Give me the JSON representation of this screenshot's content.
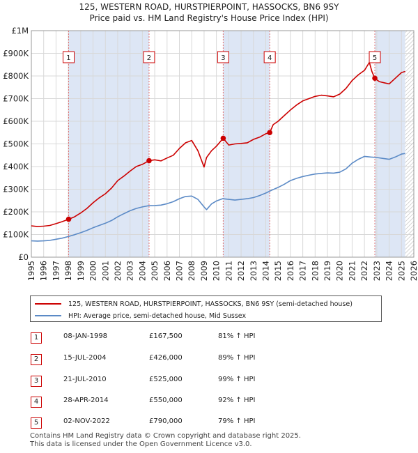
{
  "title": {
    "line1": "125, WESTERN ROAD, HURSTPIERPOINT, HASSOCKS, BN6 9SY",
    "line2": "Price paid vs. HM Land Registry's House Price Index (HPI)"
  },
  "colors": {
    "price_line": "#cc0000",
    "hpi_line": "#5b8ac6",
    "shade": "#dde6f5",
    "hatch": "#b9b9b9",
    "grid": "#d8d8d8",
    "vline": "#e07070"
  },
  "legend": {
    "price_label": "125, WESTERN ROAD, HURSTPIERPOINT, HASSOCKS, BN6 9SY (semi-detached house)",
    "hpi_label": "HPI: Average price, semi-detached house, Mid Sussex"
  },
  "transactions": [
    {
      "num": "1",
      "date": "08-JAN-1998",
      "price": "£167,500",
      "hpi": "81% ↑ HPI"
    },
    {
      "num": "2",
      "date": "15-JUL-2004",
      "price": "£426,000",
      "hpi": "89% ↑ HPI"
    },
    {
      "num": "3",
      "date": "21-JUL-2010",
      "price": "£525,000",
      "hpi": "99% ↑ HPI"
    },
    {
      "num": "4",
      "date": "28-APR-2014",
      "price": "£550,000",
      "hpi": "92% ↑ HPI"
    },
    {
      "num": "5",
      "date": "02-NOV-2022",
      "price": "£790,000",
      "hpi": "79% ↑ HPI"
    }
  ],
  "footer": {
    "line1": "Contains HM Land Registry data © Crown copyright and database right 2025.",
    "line2": "This data is licensed under the Open Government Licence v3.0."
  },
  "chart_data": {
    "type": "line",
    "title": "Price paid vs. HM Land Registry's House Price Index (HPI)",
    "xlabel": "",
    "ylabel": "",
    "xlim": [
      1995,
      2026
    ],
    "ylim": [
      0,
      1000000
    ],
    "x_ticks": [
      1995,
      1996,
      1997,
      1998,
      1999,
      2000,
      2001,
      2002,
      2003,
      2004,
      2005,
      2006,
      2007,
      2008,
      2009,
      2010,
      2011,
      2012,
      2013,
      2014,
      2015,
      2016,
      2017,
      2018,
      2019,
      2020,
      2021,
      2022,
      2023,
      2024,
      2025,
      2026
    ],
    "y_ticks": [
      {
        "value": 0,
        "label": "£0"
      },
      {
        "value": 100000,
        "label": "£100K"
      },
      {
        "value": 200000,
        "label": "£200K"
      },
      {
        "value": 300000,
        "label": "£300K"
      },
      {
        "value": 400000,
        "label": "£400K"
      },
      {
        "value": 500000,
        "label": "£500K"
      },
      {
        "value": 600000,
        "label": "£600K"
      },
      {
        "value": 700000,
        "label": "£700K"
      },
      {
        "value": 800000,
        "label": "£800K"
      },
      {
        "value": 900000,
        "label": "£900K"
      },
      {
        "value": 1000000,
        "label": "£1M"
      }
    ],
    "grid": true,
    "shaded_periods": [
      [
        1998.02,
        2004.54
      ],
      [
        2010.55,
        2014.32
      ],
      [
        2022.84,
        2025.3
      ]
    ],
    "future_hatch_from": 2025.3,
    "sales": [
      {
        "label": "1",
        "x": 1998.02,
        "y": 167500
      },
      {
        "label": "2",
        "x": 2004.54,
        "y": 426000
      },
      {
        "label": "3",
        "x": 2010.55,
        "y": 525000
      },
      {
        "label": "4",
        "x": 2014.32,
        "y": 550000
      },
      {
        "label": "5",
        "x": 2022.84,
        "y": 790000
      }
    ],
    "series": [
      {
        "name": "125, WESTERN ROAD, HURSTPIERPOINT, HASSOCKS, BN6 9SY (semi-detached house)",
        "x": [
          1995.0,
          1995.5,
          1996.0,
          1996.5,
          1997.0,
          1997.5,
          1998.02,
          1998.5,
          1999.0,
          1999.5,
          2000.0,
          2000.5,
          2001.0,
          2001.5,
          2002.0,
          2002.5,
          2003.0,
          2003.5,
          2004.0,
          2004.54,
          2005.0,
          2005.5,
          2006.0,
          2006.5,
          2007.0,
          2007.5,
          2008.0,
          2008.5,
          2009.0,
          2009.2,
          2009.6,
          2010.0,
          2010.55,
          2011.0,
          2011.5,
          2012.0,
          2012.5,
          2013.0,
          2013.5,
          2014.0,
          2014.32,
          2014.6,
          2015.0,
          2015.5,
          2016.0,
          2016.5,
          2017.0,
          2017.5,
          2018.0,
          2018.5,
          2019.0,
          2019.5,
          2020.0,
          2020.5,
          2021.0,
          2021.5,
          2022.0,
          2022.4,
          2022.6,
          2022.84,
          2023.2,
          2023.6,
          2024.0,
          2024.5,
          2025.0,
          2025.3
        ],
        "y": [
          138000,
          135000,
          137000,
          140000,
          148000,
          157000,
          167500,
          178000,
          195000,
          215000,
          240000,
          262000,
          280000,
          305000,
          338000,
          358000,
          380000,
          400000,
          410000,
          426000,
          430000,
          425000,
          438000,
          450000,
          480000,
          505000,
          515000,
          470000,
          398000,
          440000,
          470000,
          490000,
          525000,
          495000,
          500000,
          502000,
          505000,
          520000,
          530000,
          545000,
          550000,
          585000,
          600000,
          625000,
          650000,
          672000,
          690000,
          700000,
          710000,
          715000,
          712000,
          708000,
          720000,
          745000,
          780000,
          805000,
          825000,
          860000,
          820000,
          790000,
          775000,
          770000,
          765000,
          790000,
          815000,
          820000
        ]
      },
      {
        "name": "HPI: Average price, semi-detached house, Mid Sussex",
        "x": [
          1995.0,
          1995.5,
          1996.0,
          1996.5,
          1997.0,
          1997.5,
          1998.0,
          1998.5,
          1999.0,
          1999.5,
          2000.0,
          2000.5,
          2001.0,
          2001.5,
          2002.0,
          2002.5,
          2003.0,
          2003.5,
          2004.0,
          2004.5,
          2005.0,
          2005.5,
          2006.0,
          2006.5,
          2007.0,
          2007.5,
          2008.0,
          2008.5,
          2009.0,
          2009.2,
          2009.6,
          2010.0,
          2010.5,
          2011.0,
          2011.5,
          2012.0,
          2012.5,
          2013.0,
          2013.5,
          2014.0,
          2014.5,
          2015.0,
          2015.5,
          2016.0,
          2016.5,
          2017.0,
          2017.5,
          2018.0,
          2018.5,
          2019.0,
          2019.5,
          2020.0,
          2020.5,
          2021.0,
          2021.5,
          2022.0,
          2022.5,
          2023.0,
          2023.5,
          2024.0,
          2024.5,
          2025.0,
          2025.3
        ],
        "y": [
          72000,
          71000,
          72000,
          74000,
          79000,
          84000,
          91000,
          99000,
          108000,
          118000,
          130000,
          140000,
          150000,
          162000,
          178000,
          192000,
          205000,
          215000,
          222000,
          227000,
          228000,
          230000,
          236000,
          245000,
          258000,
          268000,
          270000,
          255000,
          222000,
          210000,
          235000,
          248000,
          258000,
          255000,
          252000,
          255000,
          258000,
          263000,
          272000,
          283000,
          296000,
          308000,
          322000,
          338000,
          348000,
          356000,
          362000,
          367000,
          370000,
          372000,
          371000,
          375000,
          390000,
          415000,
          432000,
          445000,
          442000,
          440000,
          436000,
          432000,
          442000,
          455000,
          458000
        ]
      }
    ]
  }
}
